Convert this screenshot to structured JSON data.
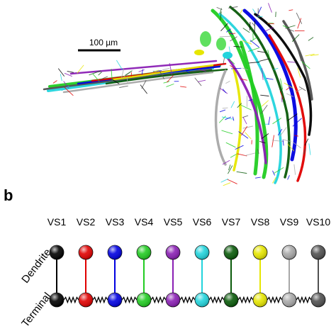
{
  "scale_bar": {
    "label": "100 µm"
  },
  "panel_b": {
    "panel_label": "b",
    "row_labels": {
      "dendrite": "Dendrite",
      "terminal": "Terminal"
    },
    "cells": [
      {
        "label": "VS1",
        "color": "#000000"
      },
      {
        "label": "VS2",
        "color": "#e00000"
      },
      {
        "label": "VS3",
        "color": "#0000e0"
      },
      {
        "label": "VS4",
        "color": "#22cc22"
      },
      {
        "label": "VS5",
        "color": "#8a1fb4"
      },
      {
        "label": "VS6",
        "color": "#22d4dc"
      },
      {
        "label": "VS7",
        "color": "#0a5a0a"
      },
      {
        "label": "VS8",
        "color": "#e6e600"
      },
      {
        "label": "VS9",
        "color": "#a8a8a8"
      },
      {
        "label": "VS10",
        "color": "#505050"
      }
    ]
  }
}
